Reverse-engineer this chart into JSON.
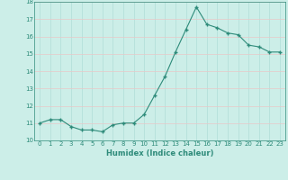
{
  "x": [
    0,
    1,
    2,
    3,
    4,
    5,
    6,
    7,
    8,
    9,
    10,
    11,
    12,
    13,
    14,
    15,
    16,
    17,
    18,
    19,
    20,
    21,
    22,
    23
  ],
  "y": [
    11.0,
    11.2,
    11.2,
    10.8,
    10.6,
    10.6,
    10.5,
    10.9,
    11.0,
    11.0,
    11.5,
    12.6,
    13.7,
    15.1,
    16.4,
    17.7,
    16.7,
    16.5,
    16.2,
    16.1,
    15.5,
    15.4,
    15.1,
    15.1
  ],
  "title": "",
  "xlabel": "Humidex (Indice chaleur)",
  "xlim": [
    -0.5,
    23.5
  ],
  "ylim": [
    10,
    18
  ],
  "yticks": [
    10,
    11,
    12,
    13,
    14,
    15,
    16,
    17,
    18
  ],
  "xticks": [
    0,
    1,
    2,
    3,
    4,
    5,
    6,
    7,
    8,
    9,
    10,
    11,
    12,
    13,
    14,
    15,
    16,
    17,
    18,
    19,
    20,
    21,
    22,
    23
  ],
  "line_color": "#2e8b7a",
  "marker": "+",
  "marker_size": 3.5,
  "marker_lw": 1.0,
  "line_width": 0.8,
  "bg_color": "#cceee8",
  "grid_v_color": "#b0ddd8",
  "grid_h_color": "#e8c8c8",
  "spine_color": "#2e8b7a",
  "tick_color": "#2e8b7a",
  "label_color": "#2e8b7a",
  "xlabel_fontsize": 6.0,
  "tick_fontsize": 5.0
}
